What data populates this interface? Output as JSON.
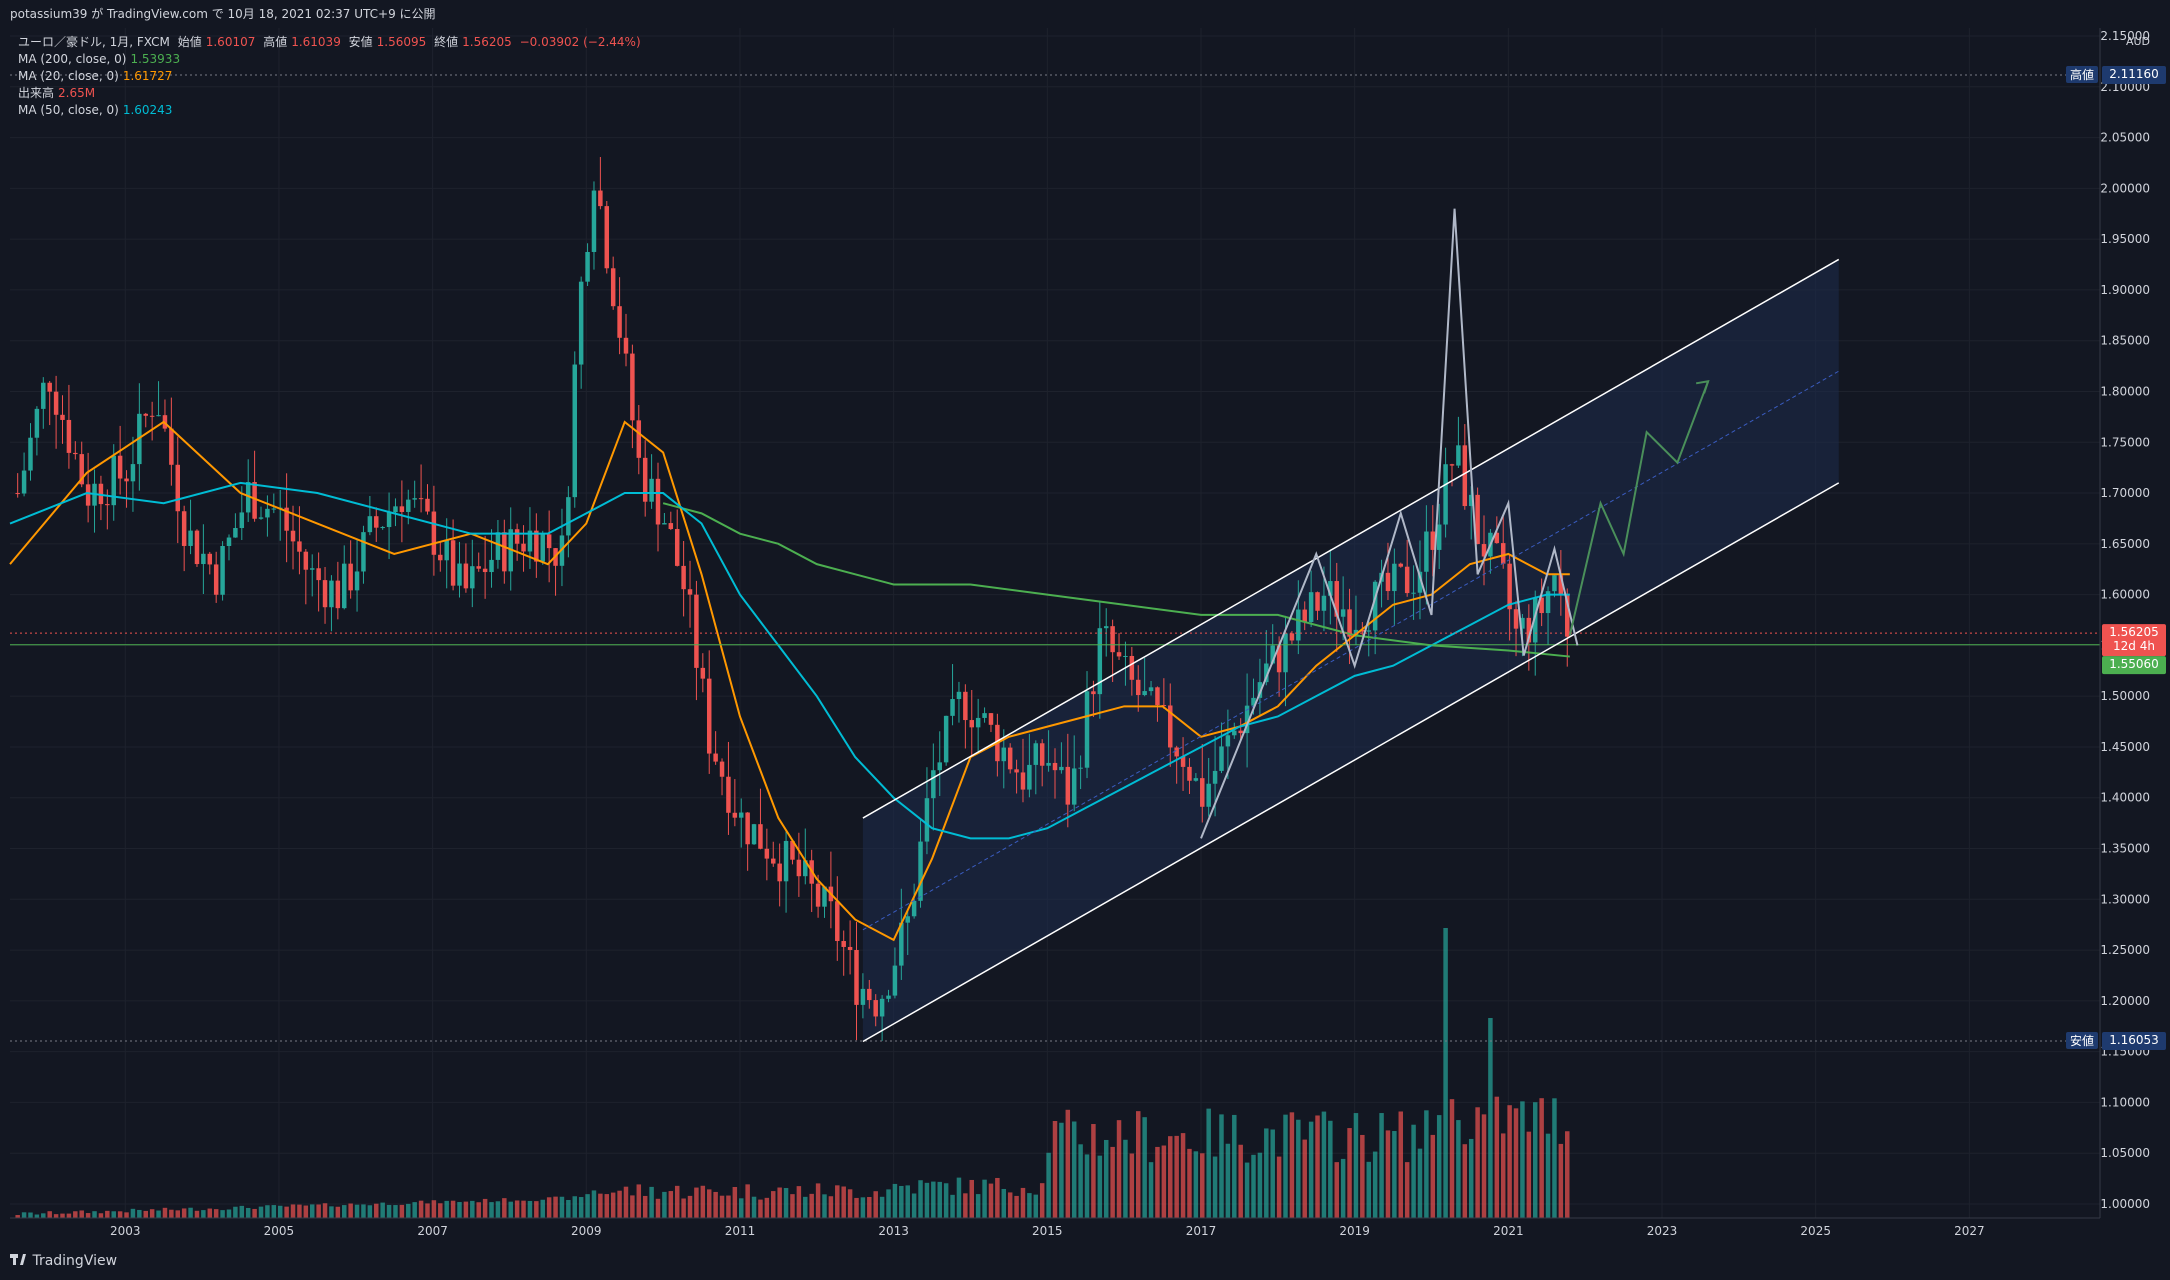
{
  "header": {
    "published": "potassium39 が TradingView.com で 10月 18, 2021 02:37 UTC+9 に公開"
  },
  "legend": {
    "symbol": "ユーロ／豪ドル, 1月, FXCM",
    "open_label": "始値",
    "open": "1.60107",
    "high_label": "高値",
    "high": "1.61039",
    "low_label": "安値",
    "low": "1.56095",
    "close_label": "終値",
    "close": "1.56205",
    "change": "−0.03902 (−2.44%)",
    "ma200_label": "MA (200, close, 0)",
    "ma200_value": "1.53933",
    "ma20_label": "MA (20, close, 0)",
    "ma20_value": "1.61727",
    "volume_label": "出来高",
    "volume_value": "2.65M",
    "ma50_label": "MA (50, close, 0)",
    "ma50_value": "1.60243"
  },
  "colors": {
    "up": "#26a69a",
    "down": "#ef5350",
    "bg": "#131722",
    "grid": "#1e222d",
    "ma200": "#4caf50",
    "ma20": "#ff9800",
    "ma50": "#00bcd4",
    "channel": "#ffffff",
    "channel_fill": "#1e2b4d",
    "zigzag": "#b0b8c8",
    "projection": "#4a8f5a",
    "last_price_bg": "#ef5350",
    "support_bg": "#4caf50",
    "extreme_bg": "#1e3a6e"
  },
  "price_axis": {
    "currency": "AUD",
    "ticks": [
      "2.15000",
      "2.10000",
      "2.05000",
      "2.00000",
      "1.95000",
      "1.90000",
      "1.85000",
      "1.80000",
      "1.75000",
      "1.70000",
      "1.65000",
      "1.60000",
      "1.55000",
      "1.50000",
      "1.45000",
      "1.40000",
      "1.35000",
      "1.30000",
      "1.25000",
      "1.20000",
      "1.15000",
      "1.10000",
      "1.05000",
      "1.00000"
    ],
    "high_tag": "高値",
    "high_value": "2.11160",
    "low_tag": "安値",
    "low_value": "1.16053",
    "last_value": "1.56205",
    "countdown": "12d 4h",
    "support_value": "1.55060"
  },
  "time_axis": {
    "labels": [
      "2003",
      "2005",
      "2007",
      "2009",
      "2011",
      "2013",
      "2015",
      "2017",
      "2019",
      "2021",
      "2023",
      "2025",
      "2027"
    ]
  },
  "footer": {
    "brand": "TradingView"
  },
  "chart_data": {
    "type": "candlestick",
    "symbol": "EURAUD",
    "interval": "1M",
    "ylim": [
      1.0,
      2.15
    ],
    "xlim": [
      2001.5,
      2028.7
    ],
    "series_points": {
      "price_path": [
        [
          2001.6,
          1.7
        ],
        [
          2002.0,
          1.82
        ],
        [
          2002.5,
          1.7
        ],
        [
          2003.0,
          1.72
        ],
        [
          2003.4,
          1.8
        ],
        [
          2003.8,
          1.66
        ],
        [
          2004.2,
          1.62
        ],
        [
          2004.6,
          1.7
        ],
        [
          2005.0,
          1.68
        ],
        [
          2005.4,
          1.62
        ],
        [
          2005.8,
          1.6
        ],
        [
          2006.2,
          1.66
        ],
        [
          2006.6,
          1.7
        ],
        [
          2007.0,
          1.66
        ],
        [
          2007.4,
          1.6
        ],
        [
          2007.8,
          1.64
        ],
        [
          2008.3,
          1.66
        ],
        [
          2008.7,
          1.64
        ],
        [
          2008.9,
          1.88
        ],
        [
          2009.1,
          2.02
        ],
        [
          2009.4,
          1.88
        ],
        [
          2009.7,
          1.72
        ],
        [
          2010.0,
          1.68
        ],
        [
          2010.3,
          1.6
        ],
        [
          2010.6,
          1.46
        ],
        [
          2011.0,
          1.38
        ],
        [
          2011.4,
          1.35
        ],
        [
          2011.8,
          1.32
        ],
        [
          2012.2,
          1.28
        ],
        [
          2012.5,
          1.22
        ],
        [
          2012.8,
          1.2
        ],
        [
          2013.2,
          1.28
        ],
        [
          2013.5,
          1.42
        ],
        [
          2013.9,
          1.5
        ],
        [
          2014.3,
          1.46
        ],
        [
          2014.7,
          1.42
        ],
        [
          2015.0,
          1.44
        ],
        [
          2015.3,
          1.4
        ],
        [
          2015.7,
          1.56
        ],
        [
          2016.0,
          1.52
        ],
        [
          2016.4,
          1.48
        ],
        [
          2016.8,
          1.44
        ],
        [
          2017.0,
          1.4
        ],
        [
          2017.4,
          1.46
        ],
        [
          2017.8,
          1.52
        ],
        [
          2018.2,
          1.56
        ],
        [
          2018.6,
          1.6
        ],
        [
          2019.0,
          1.58
        ],
        [
          2019.4,
          1.6
        ],
        [
          2019.8,
          1.62
        ],
        [
          2020.0,
          1.66
        ],
        [
          2020.3,
          1.74
        ],
        [
          2020.6,
          1.66
        ],
        [
          2020.9,
          1.62
        ],
        [
          2021.1,
          1.56
        ],
        [
          2021.4,
          1.58
        ],
        [
          2021.6,
          1.62
        ],
        [
          2021.8,
          1.56
        ]
      ],
      "ma20": [
        [
          2001.5,
          1.63
        ],
        [
          2002.5,
          1.72
        ],
        [
          2003.5,
          1.77
        ],
        [
          2004.5,
          1.7
        ],
        [
          2005.5,
          1.67
        ],
        [
          2006.5,
          1.64
        ],
        [
          2007.5,
          1.66
        ],
        [
          2008.5,
          1.63
        ],
        [
          2009.0,
          1.67
        ],
        [
          2009.5,
          1.77
        ],
        [
          2010.0,
          1.74
        ],
        [
          2010.5,
          1.62
        ],
        [
          2011.0,
          1.48
        ],
        [
          2011.5,
          1.38
        ],
        [
          2012.0,
          1.32
        ],
        [
          2012.5,
          1.28
        ],
        [
          2013.0,
          1.26
        ],
        [
          2013.5,
          1.34
        ],
        [
          2014.0,
          1.44
        ],
        [
          2014.5,
          1.46
        ],
        [
          2015.0,
          1.47
        ],
        [
          2015.5,
          1.48
        ],
        [
          2016.0,
          1.49
        ],
        [
          2016.5,
          1.49
        ],
        [
          2017.0,
          1.46
        ],
        [
          2017.5,
          1.47
        ],
        [
          2018.0,
          1.49
        ],
        [
          2018.5,
          1.53
        ],
        [
          2019.0,
          1.56
        ],
        [
          2019.5,
          1.59
        ],
        [
          2020.0,
          1.6
        ],
        [
          2020.5,
          1.63
        ],
        [
          2021.0,
          1.64
        ],
        [
          2021.5,
          1.62
        ],
        [
          2021.8,
          1.62
        ]
      ],
      "ma50": [
        [
          2001.5,
          1.67
        ],
        [
          2002.5,
          1.7
        ],
        [
          2003.5,
          1.69
        ],
        [
          2004.5,
          1.71
        ],
        [
          2005.5,
          1.7
        ],
        [
          2006.5,
          1.68
        ],
        [
          2007.5,
          1.66
        ],
        [
          2008.5,
          1.66
        ],
        [
          2009.5,
          1.7
        ],
        [
          2010.0,
          1.7
        ],
        [
          2010.5,
          1.67
        ],
        [
          2011.0,
          1.6
        ],
        [
          2011.5,
          1.55
        ],
        [
          2012.0,
          1.5
        ],
        [
          2012.5,
          1.44
        ],
        [
          2013.0,
          1.4
        ],
        [
          2013.5,
          1.37
        ],
        [
          2014.0,
          1.36
        ],
        [
          2014.5,
          1.36
        ],
        [
          2015.0,
          1.37
        ],
        [
          2015.5,
          1.39
        ],
        [
          2016.0,
          1.41
        ],
        [
          2016.5,
          1.43
        ],
        [
          2017.0,
          1.45
        ],
        [
          2017.5,
          1.47
        ],
        [
          2018.0,
          1.48
        ],
        [
          2018.5,
          1.5
        ],
        [
          2019.0,
          1.52
        ],
        [
          2019.5,
          1.53
        ],
        [
          2020.0,
          1.55
        ],
        [
          2020.5,
          1.57
        ],
        [
          2021.0,
          1.59
        ],
        [
          2021.5,
          1.6
        ],
        [
          2021.8,
          1.6
        ]
      ],
      "ma200": [
        [
          2010.0,
          1.69
        ],
        [
          2010.5,
          1.68
        ],
        [
          2011.0,
          1.66
        ],
        [
          2011.5,
          1.65
        ],
        [
          2012.0,
          1.63
        ],
        [
          2012.5,
          1.62
        ],
        [
          2013.0,
          1.61
        ],
        [
          2014.0,
          1.61
        ],
        [
          2015.0,
          1.6
        ],
        [
          2016.0,
          1.59
        ],
        [
          2017.0,
          1.58
        ],
        [
          2018.0,
          1.58
        ],
        [
          2019.0,
          1.56
        ],
        [
          2020.0,
          1.55
        ],
        [
          2021.0,
          1.545
        ],
        [
          2021.8,
          1.539
        ]
      ]
    },
    "channel": {
      "upper": [
        [
          2012.6,
          1.38
        ],
        [
          2025.3,
          1.93
        ]
      ],
      "mid": [
        [
          2012.6,
          1.27
        ],
        [
          2025.3,
          1.82
        ]
      ],
      "lower": [
        [
          2012.6,
          1.16
        ],
        [
          2025.3,
          1.71
        ]
      ]
    },
    "zigzag": [
      [
        2017.0,
        1.36
      ],
      [
        2018.5,
        1.64
      ],
      [
        2019.0,
        1.53
      ],
      [
        2019.6,
        1.68
      ],
      [
        2020.0,
        1.58
      ],
      [
        2020.3,
        1.98
      ],
      [
        2020.6,
        1.62
      ],
      [
        2021.0,
        1.69
      ],
      [
        2021.2,
        1.54
      ],
      [
        2021.6,
        1.645
      ],
      [
        2021.9,
        1.55
      ]
    ],
    "projection": [
      [
        2021.8,
        1.56
      ],
      [
        2022.2,
        1.69
      ],
      [
        2022.5,
        1.64
      ],
      [
        2022.8,
        1.76
      ],
      [
        2023.2,
        1.73
      ],
      [
        2023.6,
        1.81
      ]
    ],
    "support_line": 1.5506,
    "high": 2.1116,
    "low": 1.16053,
    "last": 1.56205,
    "volume_peak": {
      "x": 2020.0,
      "value": "largest"
    }
  }
}
